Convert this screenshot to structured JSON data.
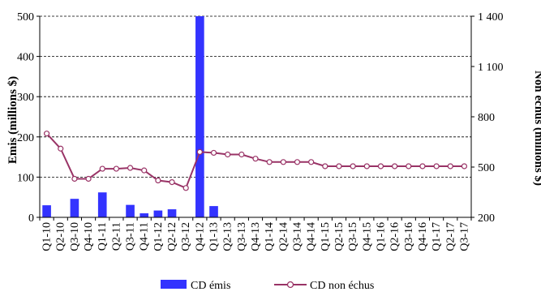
{
  "chart_data": {
    "type": "bar+line",
    "categories": [
      "Q1-10",
      "Q2-10",
      "Q3-10",
      "Q4-10",
      "Q1-11",
      "Q2-11",
      "Q3-11",
      "Q4-11",
      "Q1-12",
      "Q2-12",
      "Q3-12",
      "Q4-12",
      "Q1-13",
      "Q2-13",
      "Q3-13",
      "Q4-13",
      "Q1-14",
      "Q2-14",
      "Q3-14",
      "Q4-14",
      "Q1-15",
      "Q2-15",
      "Q3-15",
      "Q4-15",
      "Q1-16",
      "Q2-16",
      "Q3-16",
      "Q4-16",
      "Q1-17",
      "Q2-17",
      "Q3-17"
    ],
    "series": [
      {
        "name": "CD émis",
        "type": "bar",
        "axis": "left",
        "color": "#3333ff",
        "values": [
          30,
          0,
          46,
          0,
          62,
          0,
          31,
          10,
          17,
          20,
          0,
          500,
          28,
          0,
          0,
          0,
          0,
          0,
          0,
          0,
          0,
          0,
          0,
          0,
          0,
          0,
          0,
          0,
          0,
          0,
          0
        ]
      },
      {
        "name": "CD non échus",
        "type": "line",
        "axis": "right",
        "color": "#993366",
        "values": [
          700,
          610,
          430,
          430,
          490,
          490,
          495,
          480,
          420,
          410,
          375,
          590,
          585,
          575,
          575,
          550,
          530,
          530,
          530,
          530,
          505,
          505,
          505,
          505,
          505,
          505,
          505,
          505,
          505,
          505,
          505
        ]
      }
    ],
    "ylabel_left": "Emis  (millions  $)",
    "ylabel_right": "Non échus (millions  $)",
    "ylim_left": [
      0,
      500
    ],
    "yticks_left": [
      "0",
      "100",
      "200",
      "300",
      "400",
      "500"
    ],
    "ylim_right": [
      200,
      1400
    ],
    "yticks_right": [
      "200",
      "500",
      "800",
      "1 100",
      "1 400"
    ],
    "grid": "horizontal dashed",
    "legend_position": "bottom"
  }
}
